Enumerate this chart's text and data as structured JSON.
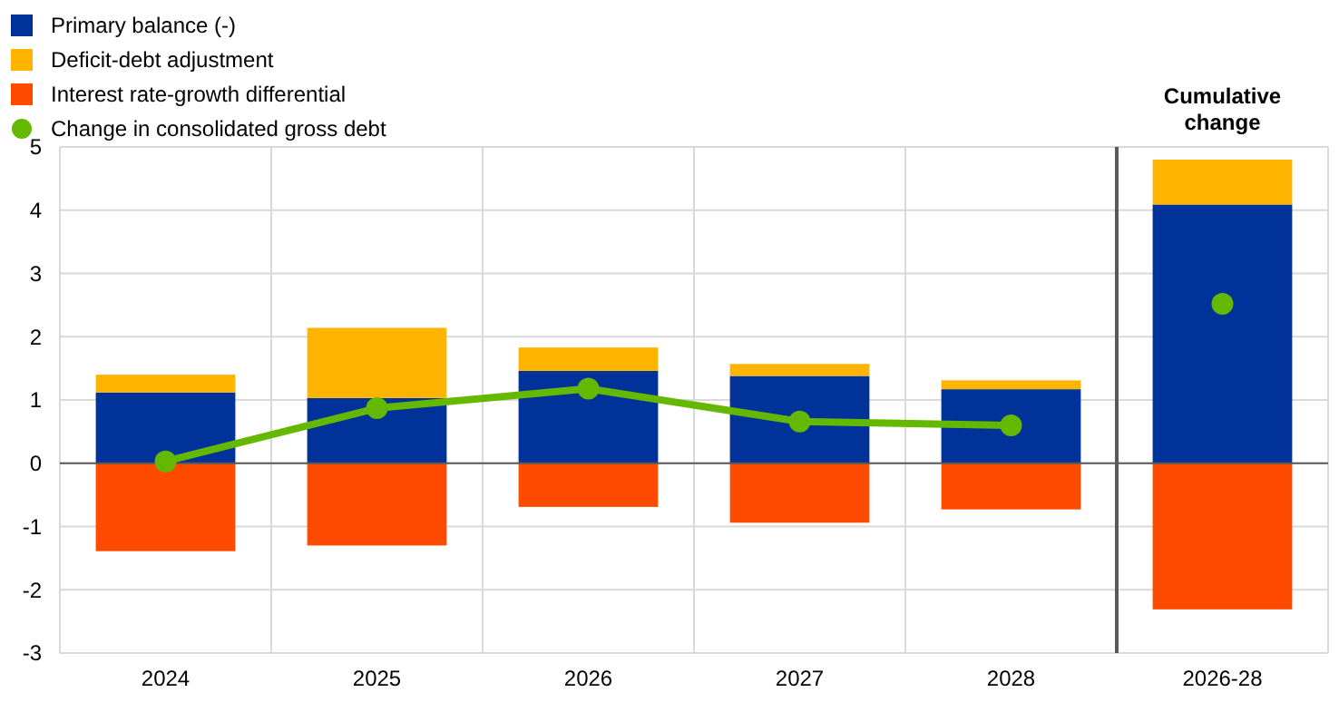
{
  "chart_data": {
    "type": "bar",
    "stacked": true,
    "categories": [
      "2024",
      "2025",
      "2026",
      "2027",
      "2028",
      "2026-28"
    ],
    "series": [
      {
        "name": "Primary balance (-)",
        "color": "#003299",
        "values": [
          1.12,
          1.03,
          1.46,
          1.38,
          1.17,
          4.09
        ]
      },
      {
        "name": "Deficit-debt adjustment",
        "color": "#ffb400",
        "values": [
          0.28,
          1.11,
          0.37,
          0.19,
          0.14,
          0.71
        ]
      },
      {
        "name": "Interest rate-growth differential",
        "color": "#ff4b00",
        "values": [
          -1.39,
          -1.3,
          -0.69,
          -0.94,
          -0.73,
          -2.31
        ]
      },
      {
        "name": "Change in consolidated gross debt",
        "type": "line",
        "marker": "circle",
        "color": "#65b800",
        "values": [
          0.03,
          0.87,
          1.18,
          0.66,
          0.6,
          null
        ]
      },
      {
        "type": "scatter",
        "marker": "circle",
        "color": "#65b800",
        "values": [
          null,
          null,
          null,
          null,
          null,
          2.52
        ]
      }
    ],
    "annotations": [
      "Cumulative change"
    ],
    "ref_lines": [
      {
        "axis": "x",
        "value": "2026-28",
        "color": "#595959"
      }
    ],
    "ylim": [
      -3,
      5
    ],
    "yticks": [
      -3,
      -2,
      -1,
      0,
      1,
      2,
      3,
      4,
      5
    ],
    "grid": true,
    "legend": "top left"
  }
}
